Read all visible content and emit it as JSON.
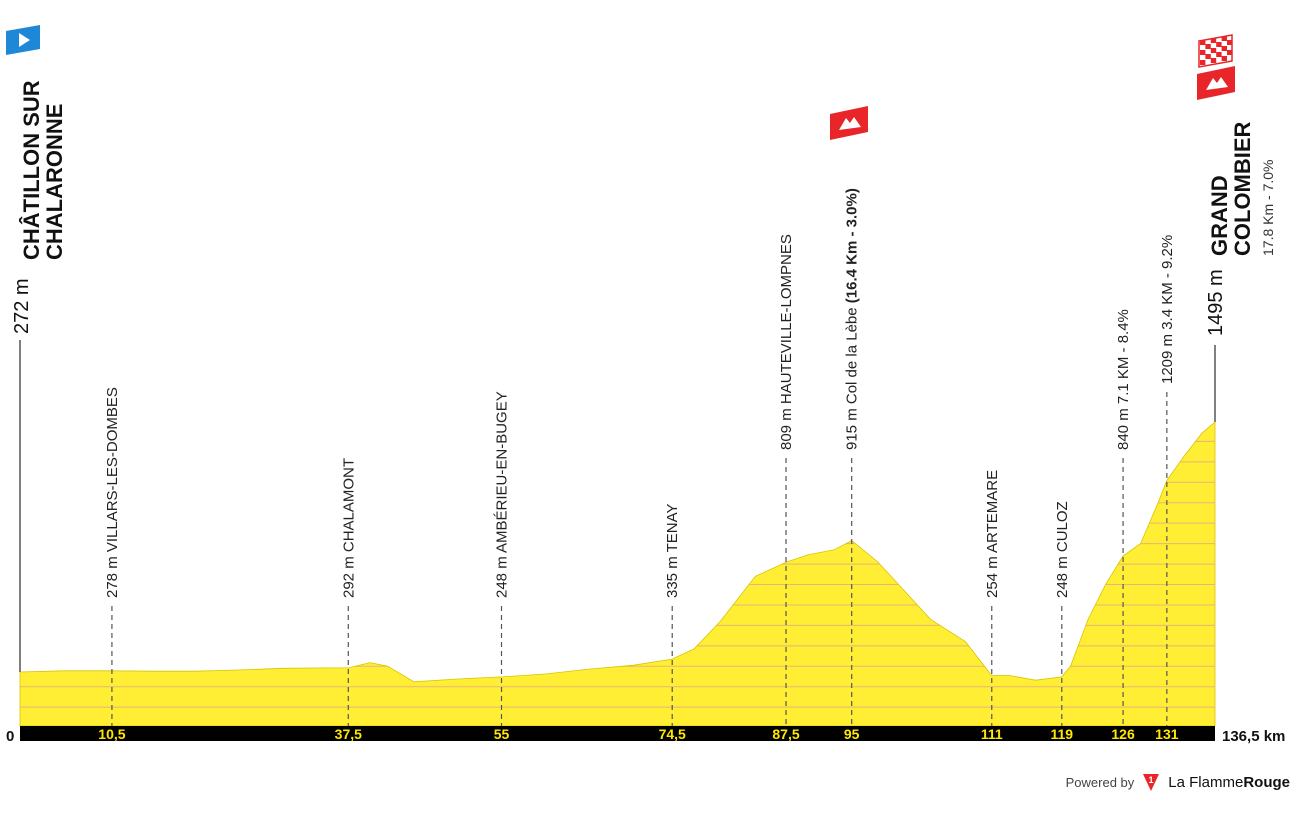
{
  "chart_data": {
    "type": "area",
    "title": "",
    "xlabel": "",
    "ylabel": "",
    "x_unit": "km",
    "xlim": [
      0,
      136.5
    ],
    "ylim": [
      0,
      1600
    ],
    "fill_color": "#ffee33",
    "axis_color": "#000000",
    "tick_label_color": "#ffe800",
    "profile": {
      "x": [
        0,
        5,
        10.5,
        15,
        20,
        25,
        30,
        35,
        37.5,
        40,
        42,
        45,
        50,
        55,
        60,
        65,
        70,
        74.5,
        77,
        80,
        84,
        87.5,
        90,
        93,
        95,
        98,
        101,
        104,
        108,
        111,
        113,
        116,
        119,
        120,
        122,
        124,
        126,
        128,
        130,
        131,
        133,
        135,
        136.5
      ],
      "y": [
        272,
        278,
        278,
        276,
        276,
        282,
        290,
        292,
        292,
        318,
        300,
        224,
        238,
        248,
        262,
        286,
        305,
        335,
        385,
        520,
        740,
        809,
        845,
        870,
        915,
        810,
        670,
        530,
        420,
        254,
        255,
        232,
        248,
        300,
        530,
        700,
        840,
        900,
        1100,
        1209,
        1330,
        1440,
        1495
      ]
    },
    "waypoints": [
      {
        "km": "10,5",
        "x": 10.5,
        "alt": 278,
        "label": "278 m VILLARS-LES-DOMBES"
      },
      {
        "km": "37,5",
        "x": 37.5,
        "alt": 292,
        "label": "292 m CHALAMONT"
      },
      {
        "km": "55",
        "x": 55,
        "alt": 248,
        "label": "248 m AMBÉRIEU-EN-BUGEY"
      },
      {
        "km": "74,5",
        "x": 74.5,
        "alt": 335,
        "label": "335 m TENAY"
      },
      {
        "km": "87,5",
        "x": 87.5,
        "alt": 809,
        "label": "809 m HAUTEVILLE-LOMPNES"
      },
      {
        "km": "95",
        "x": 95,
        "alt": 915,
        "label": "915 m Col de la Lèbe",
        "label_bold": " (16.4 Km - 3.0%)",
        "climb": true
      },
      {
        "km": "111",
        "x": 111,
        "alt": 254,
        "label": "254 m ARTEMARE"
      },
      {
        "km": "119",
        "x": 119,
        "alt": 248,
        "label": "248 m CULOZ"
      },
      {
        "km": "126",
        "x": 126,
        "alt": 840,
        "label": "840 m 7.1 KM - 8.4%"
      },
      {
        "km": "131",
        "x": 131,
        "alt": 1209,
        "label": "1209 m 3.4 KM - 9.2%"
      }
    ],
    "start": {
      "km": "0",
      "alt_label": "272 m",
      "name_line1": "CHÂTILLON SUR",
      "name_line2": "CHALARONNE",
      "flag_color": "#1e88d6"
    },
    "finish": {
      "km": "136,5 km",
      "alt_label": "1495 m",
      "name_line1": "GRAND",
      "name_line2": "COLOMBIER",
      "climb_info": "17.8 Km - 7.0%",
      "climb_color": "#e8262a"
    }
  },
  "footer": {
    "powered_by": "Powered by",
    "brand_light": "La Flamme",
    "brand_bold": "Rouge",
    "brand_color": "#e8262a",
    "logo_icon": "flamme-rouge-logo-icon"
  }
}
